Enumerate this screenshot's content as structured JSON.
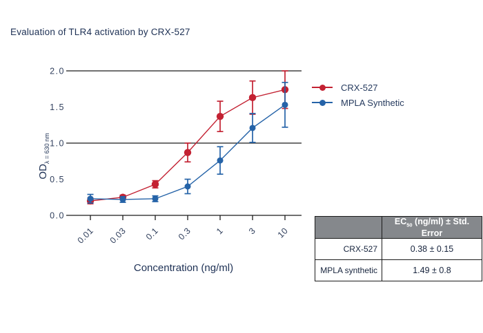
{
  "title": "Evaluation of TLR4 activation by CRX-527",
  "chart_data": {
    "type": "line",
    "x_axis": {
      "label": "Concentration (ng/ml)",
      "scale": "log",
      "ticks": [
        "0.01",
        "0.03",
        "0.1",
        "0.3",
        "1",
        "3",
        "10"
      ]
    },
    "y_axis": {
      "label_main": "OD",
      "label_sub": "λ = 630 nm",
      "range": [
        0,
        2
      ],
      "ticks": [
        "0.0",
        "0.5",
        "1.0",
        "1.5",
        "2.0"
      ],
      "gridlines": [
        1.0,
        2.0
      ]
    },
    "x": [
      0.01,
      0.03,
      0.1,
      0.3,
      1,
      3,
      10
    ],
    "series": [
      {
        "name": "CRX-527",
        "color": "#c32132",
        "values": [
          0.2,
          0.25,
          0.43,
          0.87,
          1.37,
          1.63,
          1.74
        ],
        "errors": [
          0.04,
          0.03,
          0.05,
          0.13,
          0.21,
          0.23,
          0.26
        ]
      },
      {
        "name": "MPLA Synthetic",
        "color": "#2563a8",
        "values": [
          0.23,
          0.22,
          0.23,
          0.4,
          0.76,
          1.21,
          1.53
        ],
        "errors": [
          0.06,
          0.04,
          0.04,
          0.1,
          0.19,
          0.2,
          0.31
        ]
      }
    ],
    "legend_position": "right-top",
    "grid": "horizontal-partial"
  },
  "legend": {
    "entries": [
      {
        "label": "CRX-527"
      },
      {
        "label": "MPLA Synthetic"
      }
    ]
  },
  "table": {
    "header": {
      "rowlabel_col": "",
      "value_col": {
        "prefix": "EC",
        "sub": "50",
        "suffix": " (ng/ml) ± Std. Error"
      }
    },
    "rows": [
      {
        "label": "CRX-527",
        "value": "0.38 ± 0.15"
      },
      {
        "label": "MPLA synthetic",
        "value": "1.49 ± 0.8"
      }
    ],
    "header_bg": "#85888c"
  },
  "colors": {
    "title_text": "#1d3054",
    "axis_line": "#1b1b1b",
    "crx_red": "#c32132",
    "mpla_blue": "#2563a8"
  }
}
